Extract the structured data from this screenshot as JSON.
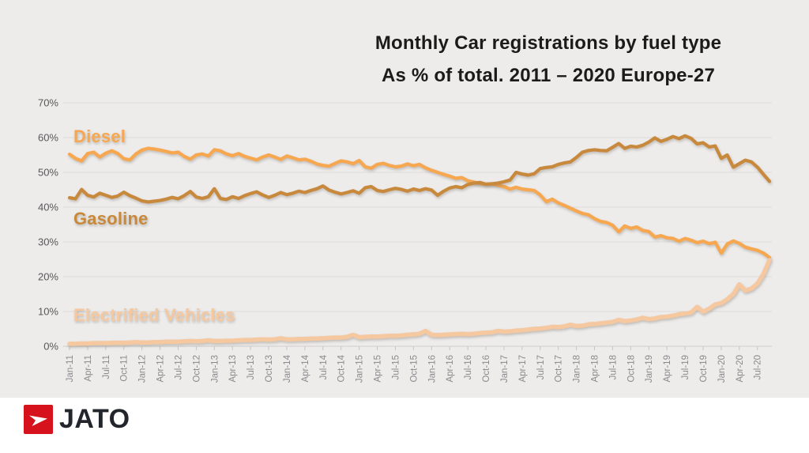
{
  "title": {
    "line1": "Monthly Car registrations by fuel type",
    "line2": "As % of total. 2011 – 2020 Europe-27"
  },
  "logo": {
    "text": "JATO",
    "accent_color": "#d6131c",
    "mark": "jato-dart-icon"
  },
  "chart_data": {
    "type": "line",
    "title": "Monthly Car registrations by fuel type",
    "subtitle": "As % of total. 2011 – 2020 Europe-27",
    "xlabel": "",
    "ylabel": "",
    "ylim": [
      0,
      70
    ],
    "grid": "horizontal",
    "legend_position": "inline-labels",
    "y_tick_values": [
      0,
      10,
      20,
      30,
      40,
      50,
      60,
      70
    ],
    "y_tick_labels": [
      "0%",
      "10%",
      "20%",
      "30%",
      "40%",
      "50%",
      "60%",
      "70%"
    ],
    "x_tick_every": 3,
    "x_months": [
      "Jan-11",
      "Feb-11",
      "Mar-11",
      "Apr-11",
      "May-11",
      "Jun-11",
      "Jul-11",
      "Aug-11",
      "Sep-11",
      "Oct-11",
      "Nov-11",
      "Dec-11",
      "Jan-12",
      "Feb-12",
      "Mar-12",
      "Apr-12",
      "May-12",
      "Jun-12",
      "Jul-12",
      "Aug-12",
      "Sep-12",
      "Oct-12",
      "Nov-12",
      "Dec-12",
      "Jan-13",
      "Feb-13",
      "Mar-13",
      "Apr-13",
      "May-13",
      "Jun-13",
      "Jul-13",
      "Aug-13",
      "Sep-13",
      "Oct-13",
      "Nov-13",
      "Dec-13",
      "Jan-14",
      "Feb-14",
      "Mar-14",
      "Apr-14",
      "May-14",
      "Jun-14",
      "Jul-14",
      "Aug-14",
      "Sep-14",
      "Oct-14",
      "Nov-14",
      "Dec-14",
      "Jan-15",
      "Feb-15",
      "Mar-15",
      "Apr-15",
      "May-15",
      "Jun-15",
      "Jul-15",
      "Aug-15",
      "Sep-15",
      "Oct-15",
      "Nov-15",
      "Dec-15",
      "Jan-16",
      "Feb-16",
      "Mar-16",
      "Apr-16",
      "May-16",
      "Jun-16",
      "Jul-16",
      "Aug-16",
      "Sep-16",
      "Oct-16",
      "Nov-16",
      "Dec-16",
      "Jan-17",
      "Feb-17",
      "Mar-17",
      "Apr-17",
      "May-17",
      "Jun-17",
      "Jul-17",
      "Aug-17",
      "Sep-17",
      "Oct-17",
      "Nov-17",
      "Dec-17",
      "Jan-18",
      "Feb-18",
      "Mar-18",
      "Apr-18",
      "May-18",
      "Jun-18",
      "Jul-18",
      "Aug-18",
      "Sep-18",
      "Oct-18",
      "Nov-18",
      "Dec-18",
      "Jan-19",
      "Feb-19",
      "Mar-19",
      "Apr-19",
      "May-19",
      "Jun-19",
      "Jul-19",
      "Aug-19",
      "Sep-19",
      "Oct-19",
      "Nov-19",
      "Dec-19",
      "Jan-20",
      "Feb-20",
      "Mar-20",
      "Apr-20",
      "May-20",
      "Jun-20",
      "Jul-20",
      "Aug-20",
      "Sep-20"
    ],
    "series": [
      {
        "name": "Diesel",
        "color": "#f6a750",
        "values": [
          55.2,
          54.0,
          53.3,
          55.4,
          55.8,
          54.4,
          55.5,
          56.2,
          55.4,
          53.9,
          53.6,
          55.3,
          56.4,
          56.9,
          56.7,
          56.4,
          56.0,
          55.6,
          55.8,
          54.6,
          53.8,
          55.0,
          55.3,
          54.7,
          56.5,
          56.2,
          55.3,
          54.8,
          55.4,
          54.6,
          54.1,
          53.6,
          54.4,
          55.0,
          54.4,
          53.7,
          54.7,
          54.2,
          53.6,
          53.8,
          53.2,
          52.4,
          52.0,
          51.8,
          52.6,
          53.3,
          53.0,
          52.5,
          53.4,
          51.6,
          51.2,
          52.3,
          52.6,
          52.0,
          51.6,
          51.8,
          52.4,
          51.9,
          52.3,
          51.3,
          50.6,
          50.0,
          49.4,
          48.9,
          48.3,
          48.5,
          47.6,
          47.2,
          46.8,
          46.6,
          46.7,
          46.3,
          45.9,
          45.2,
          45.7,
          45.2,
          45.0,
          44.8,
          43.5,
          41.6,
          42.3,
          41.2,
          40.5,
          39.7,
          38.9,
          38.2,
          37.8,
          36.7,
          35.9,
          35.6,
          34.8,
          32.9,
          34.6,
          33.9,
          34.3,
          33.3,
          33.0,
          31.4,
          31.8,
          31.2,
          31.0,
          30.2,
          31.0,
          30.5,
          29.8,
          30.2,
          29.5,
          29.9,
          26.8,
          29.4,
          30.3,
          29.6,
          28.5,
          28.0,
          27.6,
          26.8,
          25.5
        ]
      },
      {
        "name": "Gasoline",
        "color": "#c8893c",
        "values": [
          42.7,
          42.4,
          45.1,
          43.4,
          42.9,
          44.0,
          43.4,
          42.8,
          43.2,
          44.3,
          43.3,
          42.6,
          41.8,
          41.5,
          41.7,
          41.9,
          42.3,
          42.8,
          42.4,
          43.3,
          44.5,
          42.9,
          42.5,
          43.0,
          45.3,
          42.5,
          42.2,
          43.0,
          42.5,
          43.3,
          43.9,
          44.4,
          43.5,
          42.8,
          43.4,
          44.2,
          43.6,
          44.0,
          44.6,
          44.2,
          44.8,
          45.3,
          46.1,
          44.9,
          44.3,
          43.8,
          44.2,
          44.7,
          44.0,
          45.6,
          45.9,
          44.8,
          44.5,
          45.0,
          45.4,
          45.1,
          44.6,
          45.2,
          44.8,
          45.3,
          44.9,
          43.4,
          44.6,
          45.5,
          45.9,
          45.6,
          46.5,
          46.9,
          47.1,
          46.6,
          46.7,
          46.9,
          47.3,
          47.8,
          50.0,
          49.5,
          49.2,
          49.6,
          51.1,
          51.4,
          51.6,
          52.3,
          52.7,
          53.0,
          54.3,
          55.8,
          56.3,
          56.5,
          56.3,
          56.2,
          57.2,
          58.3,
          56.9,
          57.5,
          57.3,
          57.8,
          58.7,
          59.9,
          58.9,
          59.5,
          60.3,
          59.7,
          60.5,
          59.8,
          58.2,
          58.5,
          57.3,
          57.6,
          54.0,
          55.0,
          51.5,
          52.5,
          53.5,
          53.0,
          51.5,
          49.4,
          47.4
        ]
      },
      {
        "name": "Electrified Vehicles",
        "color": "#f5c8a0",
        "values": [
          0.7,
          0.7,
          0.8,
          0.8,
          0.9,
          0.9,
          0.9,
          1.0,
          1.0,
          1.0,
          1.1,
          1.2,
          1.1,
          1.1,
          1.2,
          1.2,
          1.3,
          1.3,
          1.3,
          1.4,
          1.5,
          1.4,
          1.5,
          1.7,
          1.5,
          1.5,
          1.6,
          1.6,
          1.7,
          1.8,
          1.8,
          1.9,
          2.0,
          1.9,
          2.0,
          2.3,
          2.0,
          2.0,
          2.1,
          2.1,
          2.2,
          2.2,
          2.3,
          2.4,
          2.5,
          2.5,
          2.7,
          3.3,
          2.6,
          2.7,
          2.8,
          2.8,
          2.9,
          3.0,
          3.0,
          3.1,
          3.3,
          3.4,
          3.6,
          4.4,
          3.3,
          3.2,
          3.3,
          3.4,
          3.5,
          3.6,
          3.5,
          3.6,
          3.8,
          3.9,
          4.0,
          4.4,
          4.2,
          4.3,
          4.5,
          4.6,
          4.8,
          5.0,
          5.1,
          5.3,
          5.6,
          5.5,
          5.7,
          6.2,
          5.8,
          5.9,
          6.3,
          6.4,
          6.6,
          6.8,
          7.0,
          7.6,
          7.2,
          7.4,
          7.7,
          8.2,
          7.8,
          8.0,
          8.4,
          8.5,
          8.8,
          9.2,
          9.4,
          9.7,
          11.3,
          9.9,
          10.8,
          12.0,
          12.4,
          13.5,
          15.0,
          17.8,
          16.0,
          16.6,
          18.0,
          20.8,
          24.8
        ]
      }
    ]
  }
}
